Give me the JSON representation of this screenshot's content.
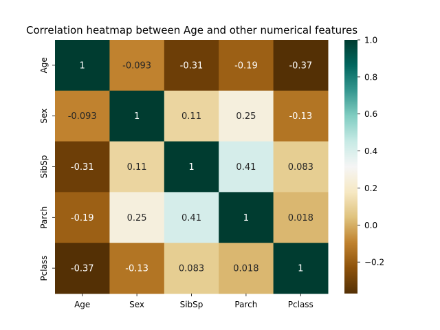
{
  "chart_data": {
    "type": "heatmap",
    "title": "Correlation heatmap between Age and other numerical features",
    "x_categories": [
      "Age",
      "Sex",
      "SibSp",
      "Parch",
      "Pclass"
    ],
    "y_categories": [
      "Age",
      "Sex",
      "SibSp",
      "Parch",
      "Pclass"
    ],
    "values": [
      [
        1,
        -0.093,
        -0.31,
        -0.19,
        -0.37
      ],
      [
        -0.093,
        1,
        0.11,
        0.25,
        -0.13
      ],
      [
        -0.31,
        0.11,
        1,
        0.41,
        0.083
      ],
      [
        -0.19,
        0.25,
        0.41,
        1,
        0.018
      ],
      [
        -0.37,
        -0.13,
        0.083,
        0.018,
        1
      ]
    ],
    "annotations": [
      [
        "1",
        "-0.093",
        "-0.31",
        "-0.19",
        "-0.37"
      ],
      [
        "-0.093",
        "1",
        "0.11",
        "0.25",
        "-0.13"
      ],
      [
        "-0.31",
        "0.11",
        "1",
        "0.41",
        "0.083"
      ],
      [
        "-0.19",
        "0.25",
        "0.41",
        "1",
        "0.018"
      ],
      [
        "-0.37",
        "-0.13",
        "0.083",
        "0.018",
        "1"
      ]
    ],
    "colormap": "BrBG",
    "vmin": -0.37,
    "vmax": 1,
    "colorbar_ticks": [
      1.0,
      0.8,
      0.6,
      0.4,
      0.2,
      0.0,
      -0.2
    ],
    "colorbar_tick_labels": [
      "1.0",
      "0.8",
      "0.6",
      "0.4",
      "0.2",
      "0.0",
      "−0.2"
    ],
    "colors": {
      "annotation_light": "#ffffff",
      "annotation_dark": "#262626"
    }
  }
}
